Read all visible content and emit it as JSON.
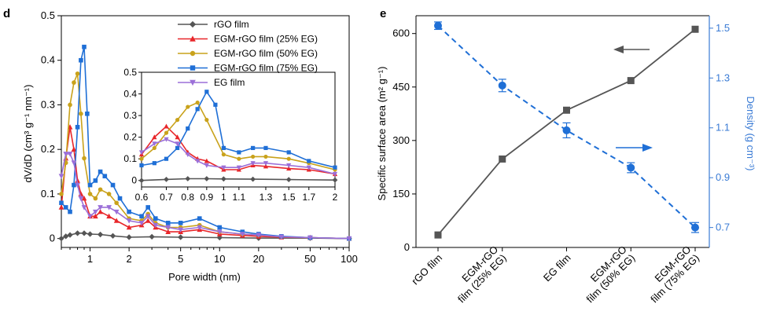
{
  "chart_data": [
    {
      "panel_label": "d",
      "type": "line",
      "xscale": "log",
      "xlabel": "Pore width (nm)",
      "ylabel": "dV/dD (cm³ g⁻¹ nm⁻¹)",
      "xlim": [
        0.6,
        100
      ],
      "ylim": [
        -0.02,
        0.5
      ],
      "xticks": [
        1,
        2,
        5,
        10,
        20,
        50,
        100
      ],
      "yticks": [
        0,
        0.1,
        0.2,
        0.3,
        0.4,
        0.5
      ],
      "legend_position": "top-right",
      "series": [
        {
          "name": "rGO film",
          "color": "#555555",
          "marker": "diamond",
          "x": [
            0.6,
            0.65,
            0.7,
            0.8,
            0.9,
            1.0,
            1.2,
            1.5,
            2,
            3,
            5,
            10,
            20,
            50,
            100
          ],
          "y": [
            0.0,
            0.005,
            0.008,
            0.012,
            0.012,
            0.01,
            0.009,
            0.006,
            0.003,
            0.004,
            0.003,
            0.002,
            0.001,
            0.001,
            0.0
          ]
        },
        {
          "name": "EGM-rGO film (25% EG)",
          "color": "#e8262a",
          "marker": "triangle-up",
          "x": [
            0.6,
            0.65,
            0.7,
            0.75,
            0.8,
            0.85,
            0.9,
            1.0,
            1.1,
            1.2,
            1.4,
            1.6,
            2.0,
            2.5,
            2.8,
            3.2,
            4,
            5,
            7,
            10,
            15,
            20,
            30,
            50,
            100
          ],
          "y": [
            0.07,
            0.18,
            0.25,
            0.2,
            0.13,
            0.1,
            0.09,
            0.05,
            0.05,
            0.06,
            0.05,
            0.04,
            0.025,
            0.03,
            0.04,
            0.025,
            0.015,
            0.015,
            0.02,
            0.01,
            0.007,
            0.005,
            0.003,
            0.002,
            0.0
          ]
        },
        {
          "name": "EGM-rGO film (50% EG)",
          "color": "#c9a21b",
          "marker": "circle",
          "x": [
            0.6,
            0.65,
            0.7,
            0.75,
            0.8,
            0.85,
            0.9,
            1.0,
            1.1,
            1.2,
            1.4,
            1.6,
            2.0,
            2.5,
            2.8,
            3.2,
            4,
            5,
            7,
            10,
            15,
            20,
            30,
            50,
            100
          ],
          "y": [
            0.1,
            0.17,
            0.3,
            0.35,
            0.37,
            0.28,
            0.18,
            0.1,
            0.09,
            0.11,
            0.1,
            0.08,
            0.045,
            0.04,
            0.055,
            0.035,
            0.025,
            0.025,
            0.03,
            0.015,
            0.01,
            0.008,
            0.004,
            0.002,
            0.0
          ]
        },
        {
          "name": "EGM-rGO film (75% EG)",
          "color": "#1f6fd6",
          "marker": "square",
          "x": [
            0.6,
            0.65,
            0.7,
            0.75,
            0.8,
            0.85,
            0.9,
            0.95,
            1.0,
            1.1,
            1.2,
            1.3,
            1.5,
            1.7,
            2.0,
            2.5,
            2.8,
            3.2,
            4,
            5,
            7,
            10,
            15,
            20,
            30,
            50,
            100
          ],
          "y": [
            0.08,
            0.07,
            0.06,
            0.12,
            0.25,
            0.4,
            0.43,
            0.28,
            0.12,
            0.13,
            0.15,
            0.14,
            0.12,
            0.09,
            0.06,
            0.05,
            0.07,
            0.045,
            0.035,
            0.035,
            0.045,
            0.025,
            0.015,
            0.01,
            0.005,
            0.002,
            0.0
          ]
        },
        {
          "name": "EG film",
          "color": "#9b6fd8",
          "marker": "triangle-down",
          "x": [
            0.6,
            0.65,
            0.7,
            0.75,
            0.8,
            0.85,
            0.9,
            1.0,
            1.1,
            1.2,
            1.4,
            1.6,
            2.0,
            2.5,
            2.8,
            3.2,
            4,
            5,
            7,
            10,
            15,
            20,
            30,
            50,
            100
          ],
          "y": [
            0.14,
            0.19,
            0.19,
            0.17,
            0.12,
            0.09,
            0.07,
            0.05,
            0.06,
            0.07,
            0.07,
            0.06,
            0.04,
            0.035,
            0.05,
            0.03,
            0.025,
            0.02,
            0.025,
            0.015,
            0.01,
            0.008,
            0.004,
            0.002,
            0.0
          ]
        }
      ],
      "inset": {
        "xscale": "log",
        "xlim": [
          0.6,
          2.0
        ],
        "ylim": [
          -0.03,
          0.5
        ],
        "xticks": [
          0.6,
          0.7,
          0.8,
          0.9,
          1,
          1.1,
          1.3,
          1.5,
          1.7,
          2
        ],
        "yticks": [
          0,
          0.1,
          0.2,
          0.3,
          0.4,
          0.5
        ],
        "series": [
          {
            "name": "rGO film",
            "x": [
              0.6,
              0.7,
              0.8,
              0.9,
              1.0,
              1.2,
              1.5,
              2.0
            ],
            "y": [
              0.0,
              0.005,
              0.008,
              0.008,
              0.007,
              0.006,
              0.004,
              0.002
            ]
          },
          {
            "name": "EGM-rGO film (25% EG)",
            "x": [
              0.6,
              0.65,
              0.7,
              0.75,
              0.8,
              0.85,
              0.9,
              1.0,
              1.1,
              1.2,
              1.3,
              1.5,
              1.7,
              2.0
            ],
            "y": [
              0.12,
              0.2,
              0.25,
              0.2,
              0.13,
              0.1,
              0.09,
              0.05,
              0.05,
              0.07,
              0.065,
              0.055,
              0.05,
              0.03
            ]
          },
          {
            "name": "EGM-rGO film (50% EG)",
            "x": [
              0.6,
              0.65,
              0.7,
              0.75,
              0.8,
              0.85,
              0.9,
              1.0,
              1.1,
              1.2,
              1.3,
              1.5,
              1.7,
              2.0
            ],
            "y": [
              0.1,
              0.15,
              0.22,
              0.28,
              0.34,
              0.36,
              0.28,
              0.12,
              0.1,
              0.11,
              0.11,
              0.1,
              0.08,
              0.05
            ]
          },
          {
            "name": "EGM-rGO film (75% EG)",
            "x": [
              0.6,
              0.65,
              0.7,
              0.75,
              0.8,
              0.85,
              0.9,
              0.95,
              1.0,
              1.1,
              1.2,
              1.3,
              1.5,
              1.7,
              2.0
            ],
            "y": [
              0.07,
              0.08,
              0.1,
              0.15,
              0.24,
              0.33,
              0.41,
              0.35,
              0.15,
              0.13,
              0.15,
              0.15,
              0.13,
              0.09,
              0.06
            ]
          },
          {
            "name": "EG film",
            "x": [
              0.6,
              0.65,
              0.7,
              0.75,
              0.8,
              0.85,
              0.9,
              1.0,
              1.1,
              1.2,
              1.3,
              1.5,
              1.7,
              2.0
            ],
            "y": [
              0.13,
              0.17,
              0.19,
              0.17,
              0.12,
              0.09,
              0.07,
              0.06,
              0.06,
              0.08,
              0.08,
              0.07,
              0.06,
              0.03
            ]
          }
        ]
      }
    },
    {
      "panel_label": "e",
      "type": "line",
      "categories": [
        "rGO film",
        "EGM-rGO film (25% EG)",
        "EG film",
        "EGM-rGO film (50% EG)",
        "EGM-rGO film (75% EG)"
      ],
      "category_labels": [
        [
          "rGO film"
        ],
        [
          "EGM-rGO",
          "film (25% EG)"
        ],
        [
          "EG film"
        ],
        [
          "EGM-rGO",
          "film (50% EG)"
        ],
        [
          "EGM-rGO",
          "film (75% EG)"
        ]
      ],
      "ylabel": "Specific surface area (m² g⁻¹)",
      "ylim": [
        0,
        650
      ],
      "yticks": [
        0,
        150,
        300,
        450,
        600
      ],
      "y2label": "Density (g cm⁻³)",
      "y2lim": [
        0.62,
        1.55
      ],
      "y2ticks": [
        0.7,
        0.9,
        1.1,
        1.3,
        1.5
      ],
      "series": [
        {
          "name": "Specific surface area",
          "axis": "left",
          "color": "#555555",
          "marker": "square",
          "line": "solid",
          "values": [
            35,
            248,
            385,
            468,
            612
          ]
        },
        {
          "name": "Density",
          "axis": "right",
          "color": "#1f6fd6",
          "marker": "circle",
          "line": "dashed",
          "values": [
            1.51,
            1.27,
            1.09,
            0.94,
            0.7
          ],
          "errors": [
            0.015,
            0.025,
            0.03,
            0.02,
            0.02
          ]
        }
      ],
      "annotations": [
        {
          "type": "arrow",
          "direction": "left",
          "points_to": "left axis",
          "color": "#555555"
        },
        {
          "type": "arrow",
          "direction": "right",
          "points_to": "right axis",
          "color": "#1f6fd6"
        }
      ]
    }
  ],
  "colors": {
    "axis": "#000000",
    "right_axis": "#3a7bd5"
  }
}
